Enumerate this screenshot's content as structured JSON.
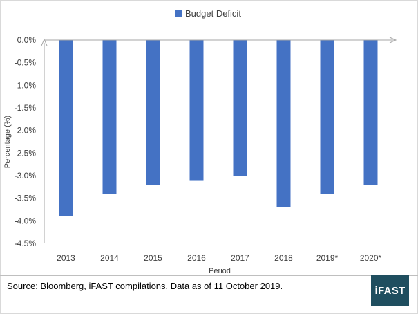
{
  "chart_data": {
    "type": "bar",
    "categories": [
      "2013",
      "2014",
      "2015",
      "2016",
      "2017",
      "2018",
      "2019*",
      "2020*"
    ],
    "series": [
      {
        "name": "Budget Deficit",
        "values": [
          -3.9,
          -3.4,
          -3.2,
          -3.1,
          -3.0,
          -3.7,
          -3.4,
          -3.2
        ]
      }
    ],
    "xlabel": "Period",
    "ylabel": "Percentage (%)",
    "ylim": [
      -4.5,
      0
    ],
    "yticks": [
      0,
      -0.5,
      -1.0,
      -1.5,
      -2.0,
      -2.5,
      -3.0,
      -3.5,
      -4.0,
      -4.5
    ],
    "ytick_labels": [
      "0.0%",
      "-0.5%",
      "-1.0%",
      "-1.5%",
      "-2.0%",
      "-2.5%",
      "-3.0%",
      "-3.5%",
      "-4.0%",
      "-4.5%"
    ],
    "grid": false,
    "legend_position": "top-center",
    "bar_color": "#4472c4"
  },
  "footer": {
    "source": "Source: Bloomberg, iFAST compilations. Data as of 11 October 2019.",
    "logo_text": "iFAST",
    "logo_color": "#1f4e5f"
  }
}
